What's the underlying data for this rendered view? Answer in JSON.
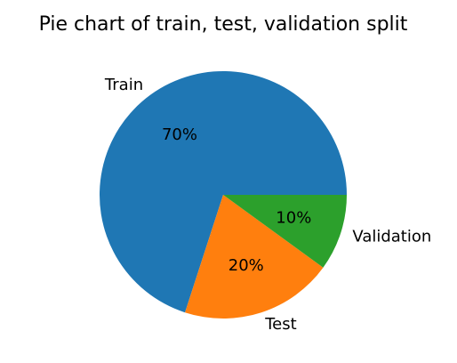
{
  "chart_data": {
    "type": "pie",
    "title": "Pie chart of train, test, validation split",
    "slices": [
      {
        "label": "Train",
        "value": 70,
        "pct_label": "70%",
        "color": "#1f77b4"
      },
      {
        "label": "Test",
        "value": 20,
        "pct_label": "20%",
        "color": "#ff7f0e"
      },
      {
        "label": "Validation",
        "value": 10,
        "pct_label": "10%",
        "color": "#2ca02c"
      }
    ],
    "start_angle_deg": 0,
    "direction": "counterclockwise",
    "legend": "none"
  }
}
